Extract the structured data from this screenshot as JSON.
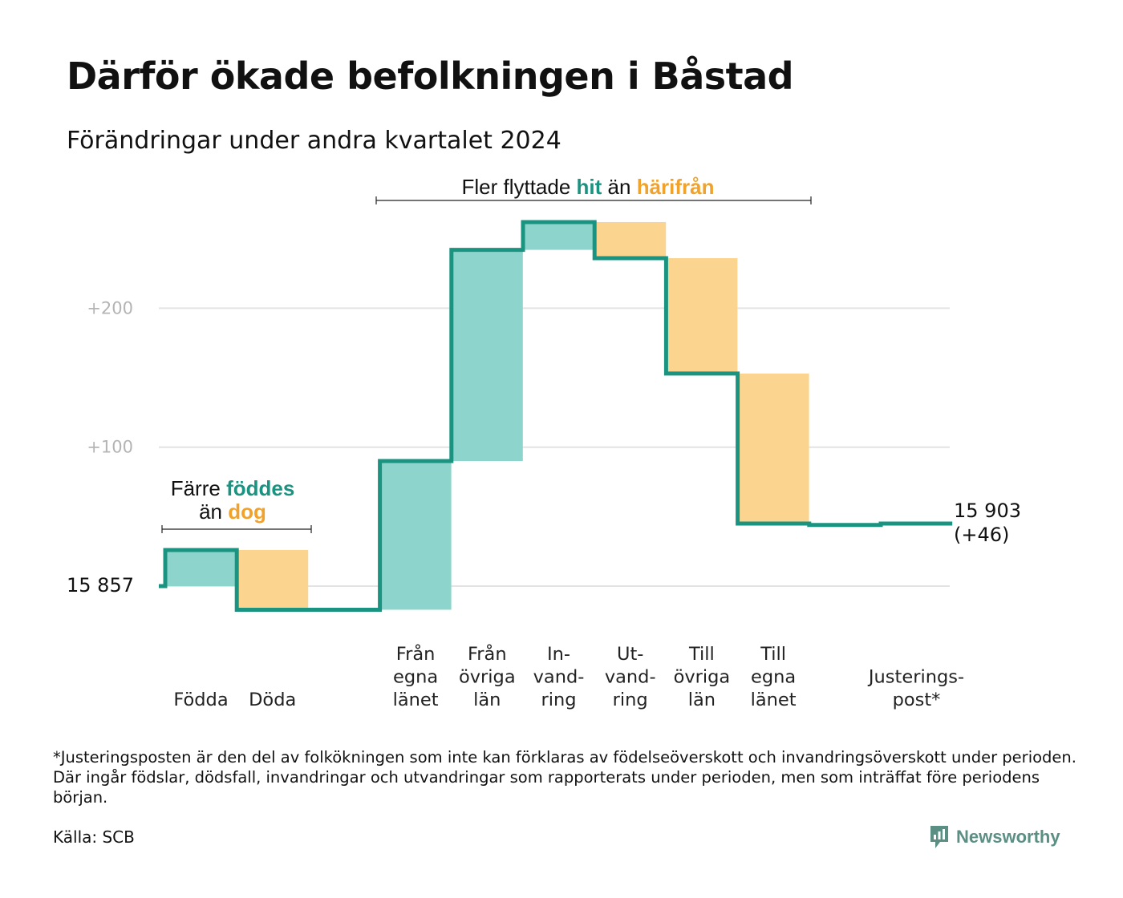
{
  "title": "Därför ökade befolkningen i Båstad",
  "subtitle": "Förändringar under andra kvartalet 2024",
  "colors": {
    "line": "#1a9381",
    "increase": "#8dd5cc",
    "decrease": "#fbd58f",
    "highlight_increase": "#1a9381",
    "highlight_decrease": "#f0a22a",
    "grid": "#e3e3e3"
  },
  "annotations": {
    "births_deaths": {
      "part1": "Färre",
      "hl1": "föddes",
      "part2": "än",
      "hl2": "dog"
    },
    "migration": {
      "part1": "Fler flyttade",
      "hl1": "hit",
      "part2": "än",
      "hl2": "härifrån"
    }
  },
  "chart_data": {
    "type": "waterfall",
    "title": "Därför ökade befolkningen i Båstad",
    "subtitle": "Förändringar under andra kvartalet 2024",
    "start_value": 15857,
    "start_label": "15  857",
    "end_value": 15903,
    "end_label_value": "15 903",
    "end_label_change": "(+46)",
    "y_ticks": [
      {
        "value": 100,
        "label": "+100"
      },
      {
        "value": 200,
        "label": "+200"
      }
    ],
    "ylim": [
      -25,
      277
    ],
    "categories": [
      {
        "label": [
          "Födda"
        ],
        "change": 26
      },
      {
        "label": [
          "Döda"
        ],
        "change": -43
      },
      {
        "label": [],
        "change": 0
      },
      {
        "label": [
          "Från",
          "egna",
          "länet"
        ],
        "change": 107
      },
      {
        "label": [
          "Från",
          "övriga",
          "län"
        ],
        "change": 152
      },
      {
        "label": [
          "In-",
          "vand-",
          "ring"
        ],
        "change": 20
      },
      {
        "label": [
          "Ut-",
          "vand-",
          "ring"
        ],
        "change": -26
      },
      {
        "label": [
          "Till",
          "övriga",
          "län"
        ],
        "change": -83
      },
      {
        "label": [
          "Till",
          "egna",
          "länet"
        ],
        "change": -108
      },
      {
        "label": [],
        "change": -1
      },
      {
        "label": [
          "Justerings-",
          "post*"
        ],
        "change": 1
      }
    ]
  },
  "footnote": "*Justeringsposten är den del av folkökningen som inte kan förklaras av födelseöverskott och invandringsöverskott under perioden. Där ingår födslar, dödsfall, invandringar och utvandringar som rapporterats under perioden, men som inträffat före periodens början.",
  "source": "Källa: SCB",
  "brand": {
    "name": "Newsworthy",
    "icon": "newsworthy-logo-icon"
  }
}
